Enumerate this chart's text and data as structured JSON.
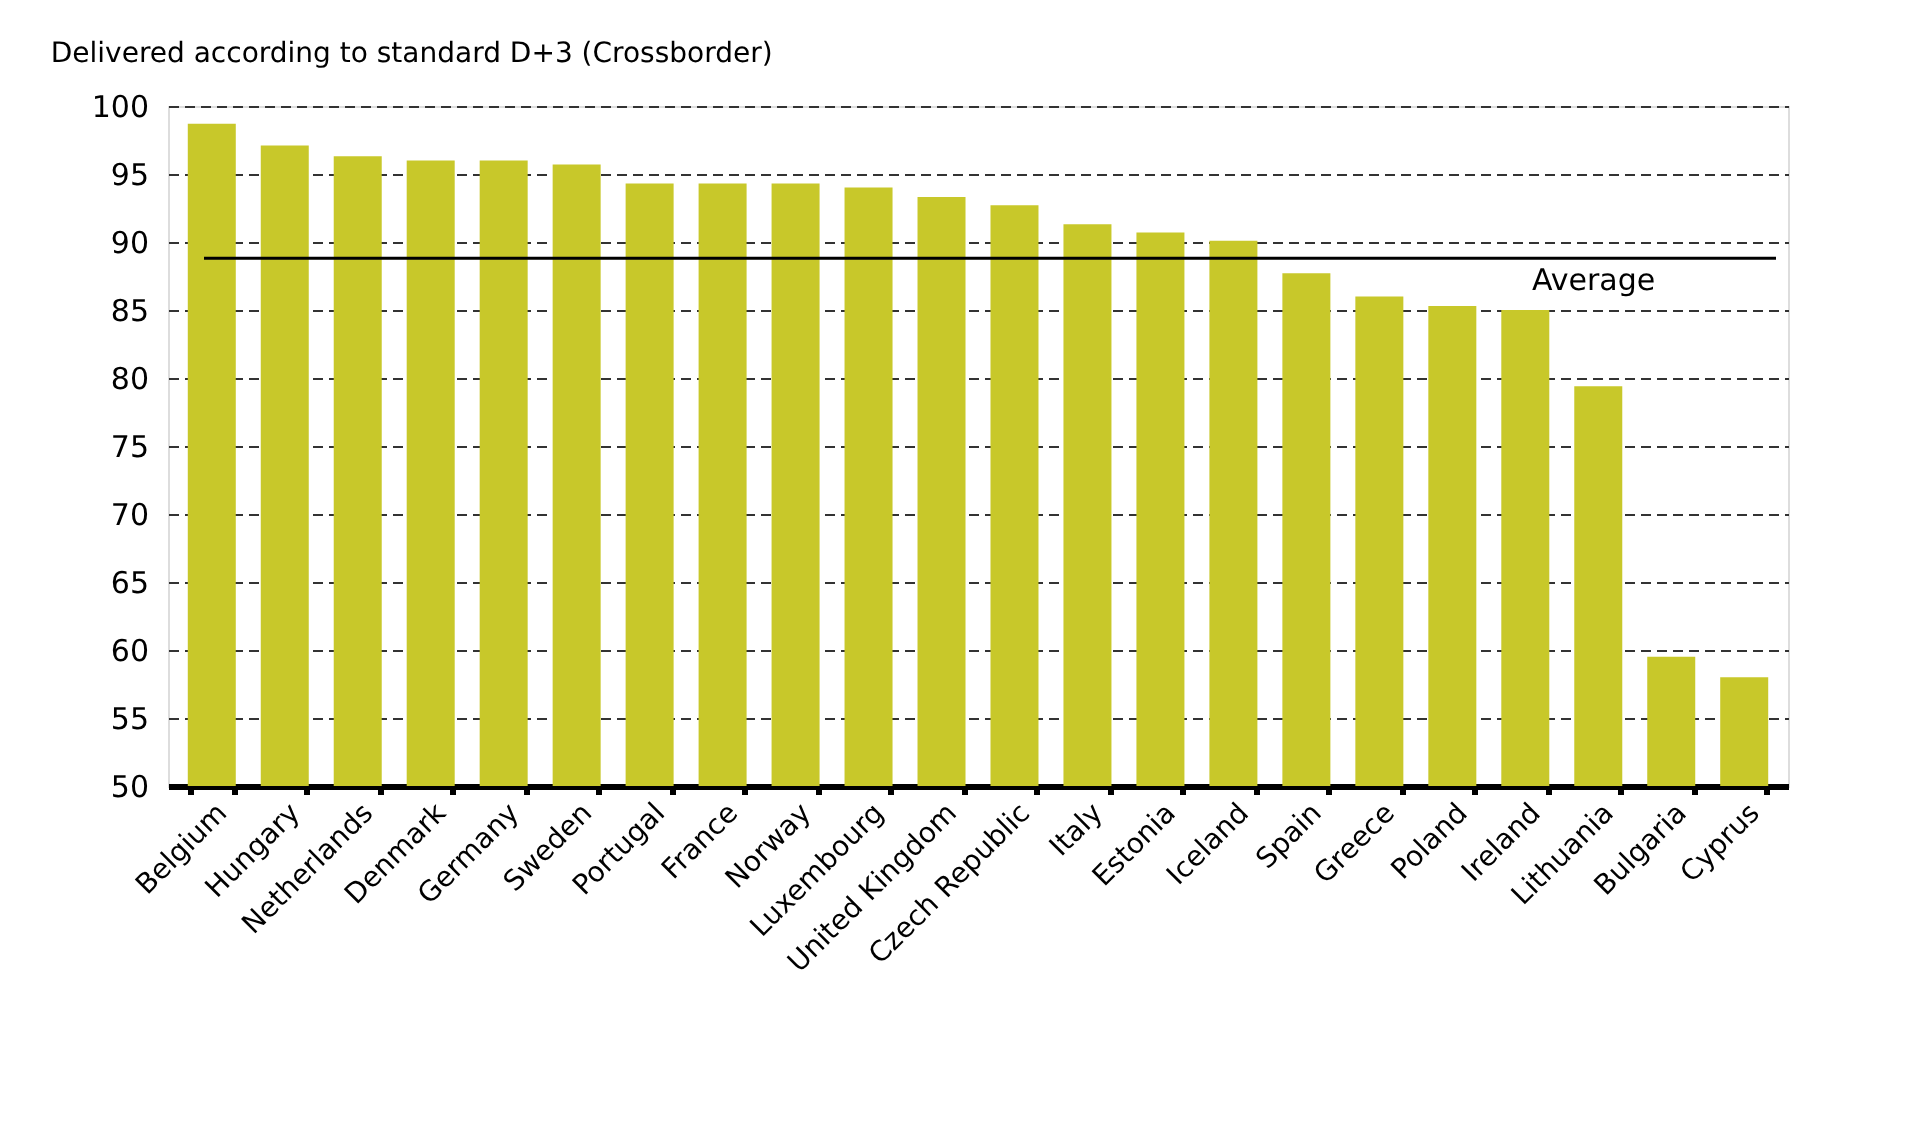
{
  "chart_data": {
    "type": "bar",
    "title": "Delivered according to standard D+3 (Crossborder)",
    "categories": [
      "Belgium",
      "Hungary",
      "Netherlands",
      "Denmark",
      "Germany",
      "Sweden",
      "Portugal",
      "France",
      "Norway",
      "Luxembourg",
      "United Kingdom",
      "Czech Republic",
      "Italy",
      "Estonia",
      "Iceland",
      "Spain",
      "Greece",
      "Poland",
      "Ireland",
      "Lithuania",
      "Bulgaria",
      "Cyprus"
    ],
    "values": [
      98.7,
      97.1,
      96.3,
      96.0,
      96.0,
      95.7,
      94.3,
      94.3,
      94.3,
      94.0,
      93.3,
      92.7,
      91.3,
      90.7,
      90.1,
      87.7,
      86.0,
      85.3,
      85.0,
      79.4,
      59.5,
      58.0
    ],
    "color": "#c8c82a",
    "ylim": [
      50,
      100
    ],
    "yticks": [
      50,
      55,
      60,
      65,
      70,
      75,
      80,
      85,
      90,
      95,
      100
    ],
    "grid": "y",
    "ref_lines": [
      {
        "axis": "y",
        "value": 88.8,
        "label": "Average",
        "color": "#000000",
        "line_style": "solid"
      }
    ]
  }
}
